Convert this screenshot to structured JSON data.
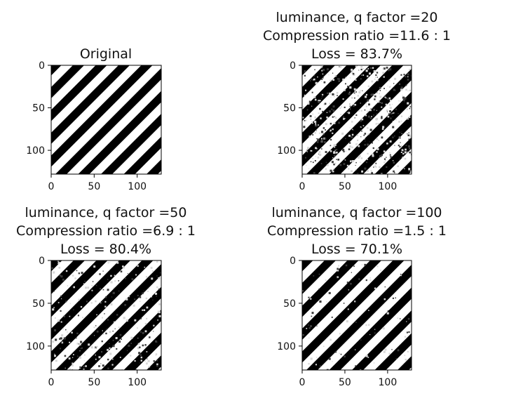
{
  "chart_data": [
    {
      "type": "heatmap",
      "title_lines": [
        "Original"
      ],
      "xticks": [
        0,
        50,
        100
      ],
      "yticks": [
        0,
        50,
        100
      ],
      "xlim": [
        0,
        128
      ],
      "ylim": [
        128,
        0
      ],
      "pattern": "diagonal black/white stripes",
      "noise": "none",
      "grid": false
    },
    {
      "type": "heatmap",
      "title_lines": [
        "luminance, q factor =20",
        "Compression ratio =11.6 : 1",
        "Loss = 83.7%"
      ],
      "xticks": [
        0,
        50,
        100
      ],
      "yticks": [
        0,
        50,
        100
      ],
      "xlim": [
        0,
        128
      ],
      "ylim": [
        128,
        0
      ],
      "pattern": "diagonal black/white stripes",
      "noise": "heavy",
      "grid": false
    },
    {
      "type": "heatmap",
      "title_lines": [
        "luminance, q factor =50",
        "Compression ratio =6.9 : 1",
        "Loss = 80.4%"
      ],
      "xticks": [
        0,
        50,
        100
      ],
      "yticks": [
        0,
        50,
        100
      ],
      "xlim": [
        0,
        128
      ],
      "ylim": [
        128,
        0
      ],
      "pattern": "diagonal black/white stripes",
      "noise": "medium",
      "grid": false
    },
    {
      "type": "heatmap",
      "title_lines": [
        "luminance, q factor =100",
        "Compression ratio =1.5 : 1",
        "Loss = 70.1%"
      ],
      "xticks": [
        0,
        50,
        100
      ],
      "yticks": [
        0,
        50,
        100
      ],
      "xlim": [
        0,
        128
      ],
      "ylim": [
        128,
        0
      ],
      "pattern": "diagonal black/white stripes",
      "noise": "light",
      "grid": false
    }
  ]
}
